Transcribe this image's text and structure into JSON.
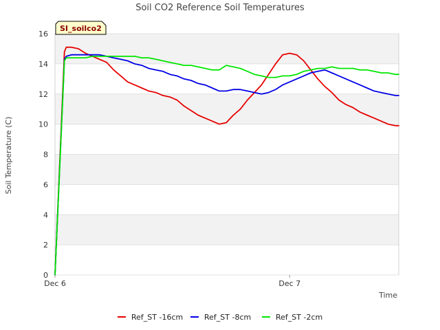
{
  "chart_data": {
    "type": "line",
    "title": "Soil CO2 Reference Soil Temperatures",
    "xlabel": "Time",
    "ylabel": "Soil Temperature (C)",
    "site_label": "SI_soilco2",
    "ylim": [
      0,
      16
    ],
    "xlim_days": [
      0,
      1.465
    ],
    "yticks": [
      0,
      2,
      4,
      6,
      8,
      10,
      12,
      14,
      16
    ],
    "xticks": [
      {
        "value": 0,
        "label": "Dec 6"
      },
      {
        "value": 1,
        "label": "Dec 7"
      }
    ],
    "grid": "horizontal bands",
    "legend_position": "bottom",
    "series": [
      {
        "name": "Ref_ST -16cm",
        "color": "#e60000",
        "x": [
          0.0,
          0.04,
          0.048,
          0.07,
          0.1,
          0.13,
          0.16,
          0.19,
          0.22,
          0.25,
          0.28,
          0.31,
          0.34,
          0.37,
          0.4,
          0.43,
          0.46,
          0.49,
          0.52,
          0.55,
          0.58,
          0.61,
          0.64,
          0.67,
          0.7,
          0.73,
          0.76,
          0.79,
          0.82,
          0.85,
          0.88,
          0.91,
          0.94,
          0.97,
          1.0,
          1.03,
          1.06,
          1.09,
          1.12,
          1.15,
          1.18,
          1.21,
          1.24,
          1.27,
          1.3,
          1.33,
          1.36,
          1.39,
          1.42,
          1.45,
          1.465
        ],
        "y": [
          0.0,
          14.8,
          15.1,
          15.1,
          15.0,
          14.7,
          14.5,
          14.3,
          14.1,
          13.6,
          13.2,
          12.8,
          12.6,
          12.4,
          12.2,
          12.1,
          11.9,
          11.8,
          11.6,
          11.2,
          10.9,
          10.6,
          10.4,
          10.2,
          10.0,
          10.1,
          10.6,
          11.0,
          11.6,
          12.1,
          12.6,
          13.3,
          14.0,
          14.6,
          14.7,
          14.6,
          14.2,
          13.6,
          13.0,
          12.5,
          12.1,
          11.6,
          11.3,
          11.1,
          10.8,
          10.6,
          10.4,
          10.2,
          10.0,
          9.9,
          9.9
        ]
      },
      {
        "name": "Ref_ST -8cm",
        "color": "#0000e6",
        "x": [
          0.0,
          0.04,
          0.048,
          0.07,
          0.1,
          0.13,
          0.16,
          0.19,
          0.22,
          0.25,
          0.28,
          0.31,
          0.34,
          0.37,
          0.4,
          0.43,
          0.46,
          0.49,
          0.52,
          0.55,
          0.58,
          0.61,
          0.64,
          0.67,
          0.7,
          0.73,
          0.76,
          0.79,
          0.82,
          0.85,
          0.88,
          0.91,
          0.94,
          0.97,
          1.0,
          1.03,
          1.06,
          1.09,
          1.12,
          1.15,
          1.18,
          1.21,
          1.24,
          1.27,
          1.3,
          1.33,
          1.36,
          1.39,
          1.42,
          1.45,
          1.465
        ],
        "y": [
          0.0,
          14.3,
          14.5,
          14.6,
          14.6,
          14.6,
          14.6,
          14.6,
          14.5,
          14.4,
          14.3,
          14.2,
          14.0,
          13.9,
          13.7,
          13.6,
          13.5,
          13.3,
          13.2,
          13.0,
          12.9,
          12.7,
          12.6,
          12.4,
          12.2,
          12.2,
          12.3,
          12.3,
          12.2,
          12.1,
          12.0,
          12.1,
          12.3,
          12.6,
          12.8,
          13.0,
          13.2,
          13.4,
          13.5,
          13.6,
          13.4,
          13.2,
          13.0,
          12.8,
          12.6,
          12.4,
          12.2,
          12.1,
          12.0,
          11.9,
          11.9
        ]
      },
      {
        "name": "Ref_ST -2cm",
        "color": "#00e600",
        "x": [
          0.0,
          0.04,
          0.048,
          0.07,
          0.1,
          0.13,
          0.16,
          0.19,
          0.22,
          0.25,
          0.28,
          0.31,
          0.34,
          0.37,
          0.4,
          0.43,
          0.46,
          0.49,
          0.52,
          0.55,
          0.58,
          0.61,
          0.64,
          0.67,
          0.7,
          0.73,
          0.76,
          0.79,
          0.82,
          0.85,
          0.88,
          0.91,
          0.94,
          0.97,
          1.0,
          1.03,
          1.06,
          1.09,
          1.12,
          1.15,
          1.18,
          1.21,
          1.24,
          1.27,
          1.3,
          1.33,
          1.36,
          1.39,
          1.42,
          1.45,
          1.465
        ],
        "y": [
          0.0,
          14.2,
          14.4,
          14.4,
          14.4,
          14.4,
          14.5,
          14.5,
          14.5,
          14.5,
          14.5,
          14.5,
          14.5,
          14.4,
          14.4,
          14.3,
          14.2,
          14.1,
          14.0,
          13.9,
          13.9,
          13.8,
          13.7,
          13.6,
          13.6,
          13.9,
          13.8,
          13.7,
          13.5,
          13.3,
          13.2,
          13.1,
          13.1,
          13.2,
          13.2,
          13.3,
          13.5,
          13.6,
          13.7,
          13.7,
          13.8,
          13.7,
          13.7,
          13.7,
          13.6,
          13.6,
          13.5,
          13.4,
          13.4,
          13.3,
          13.3
        ]
      }
    ]
  }
}
